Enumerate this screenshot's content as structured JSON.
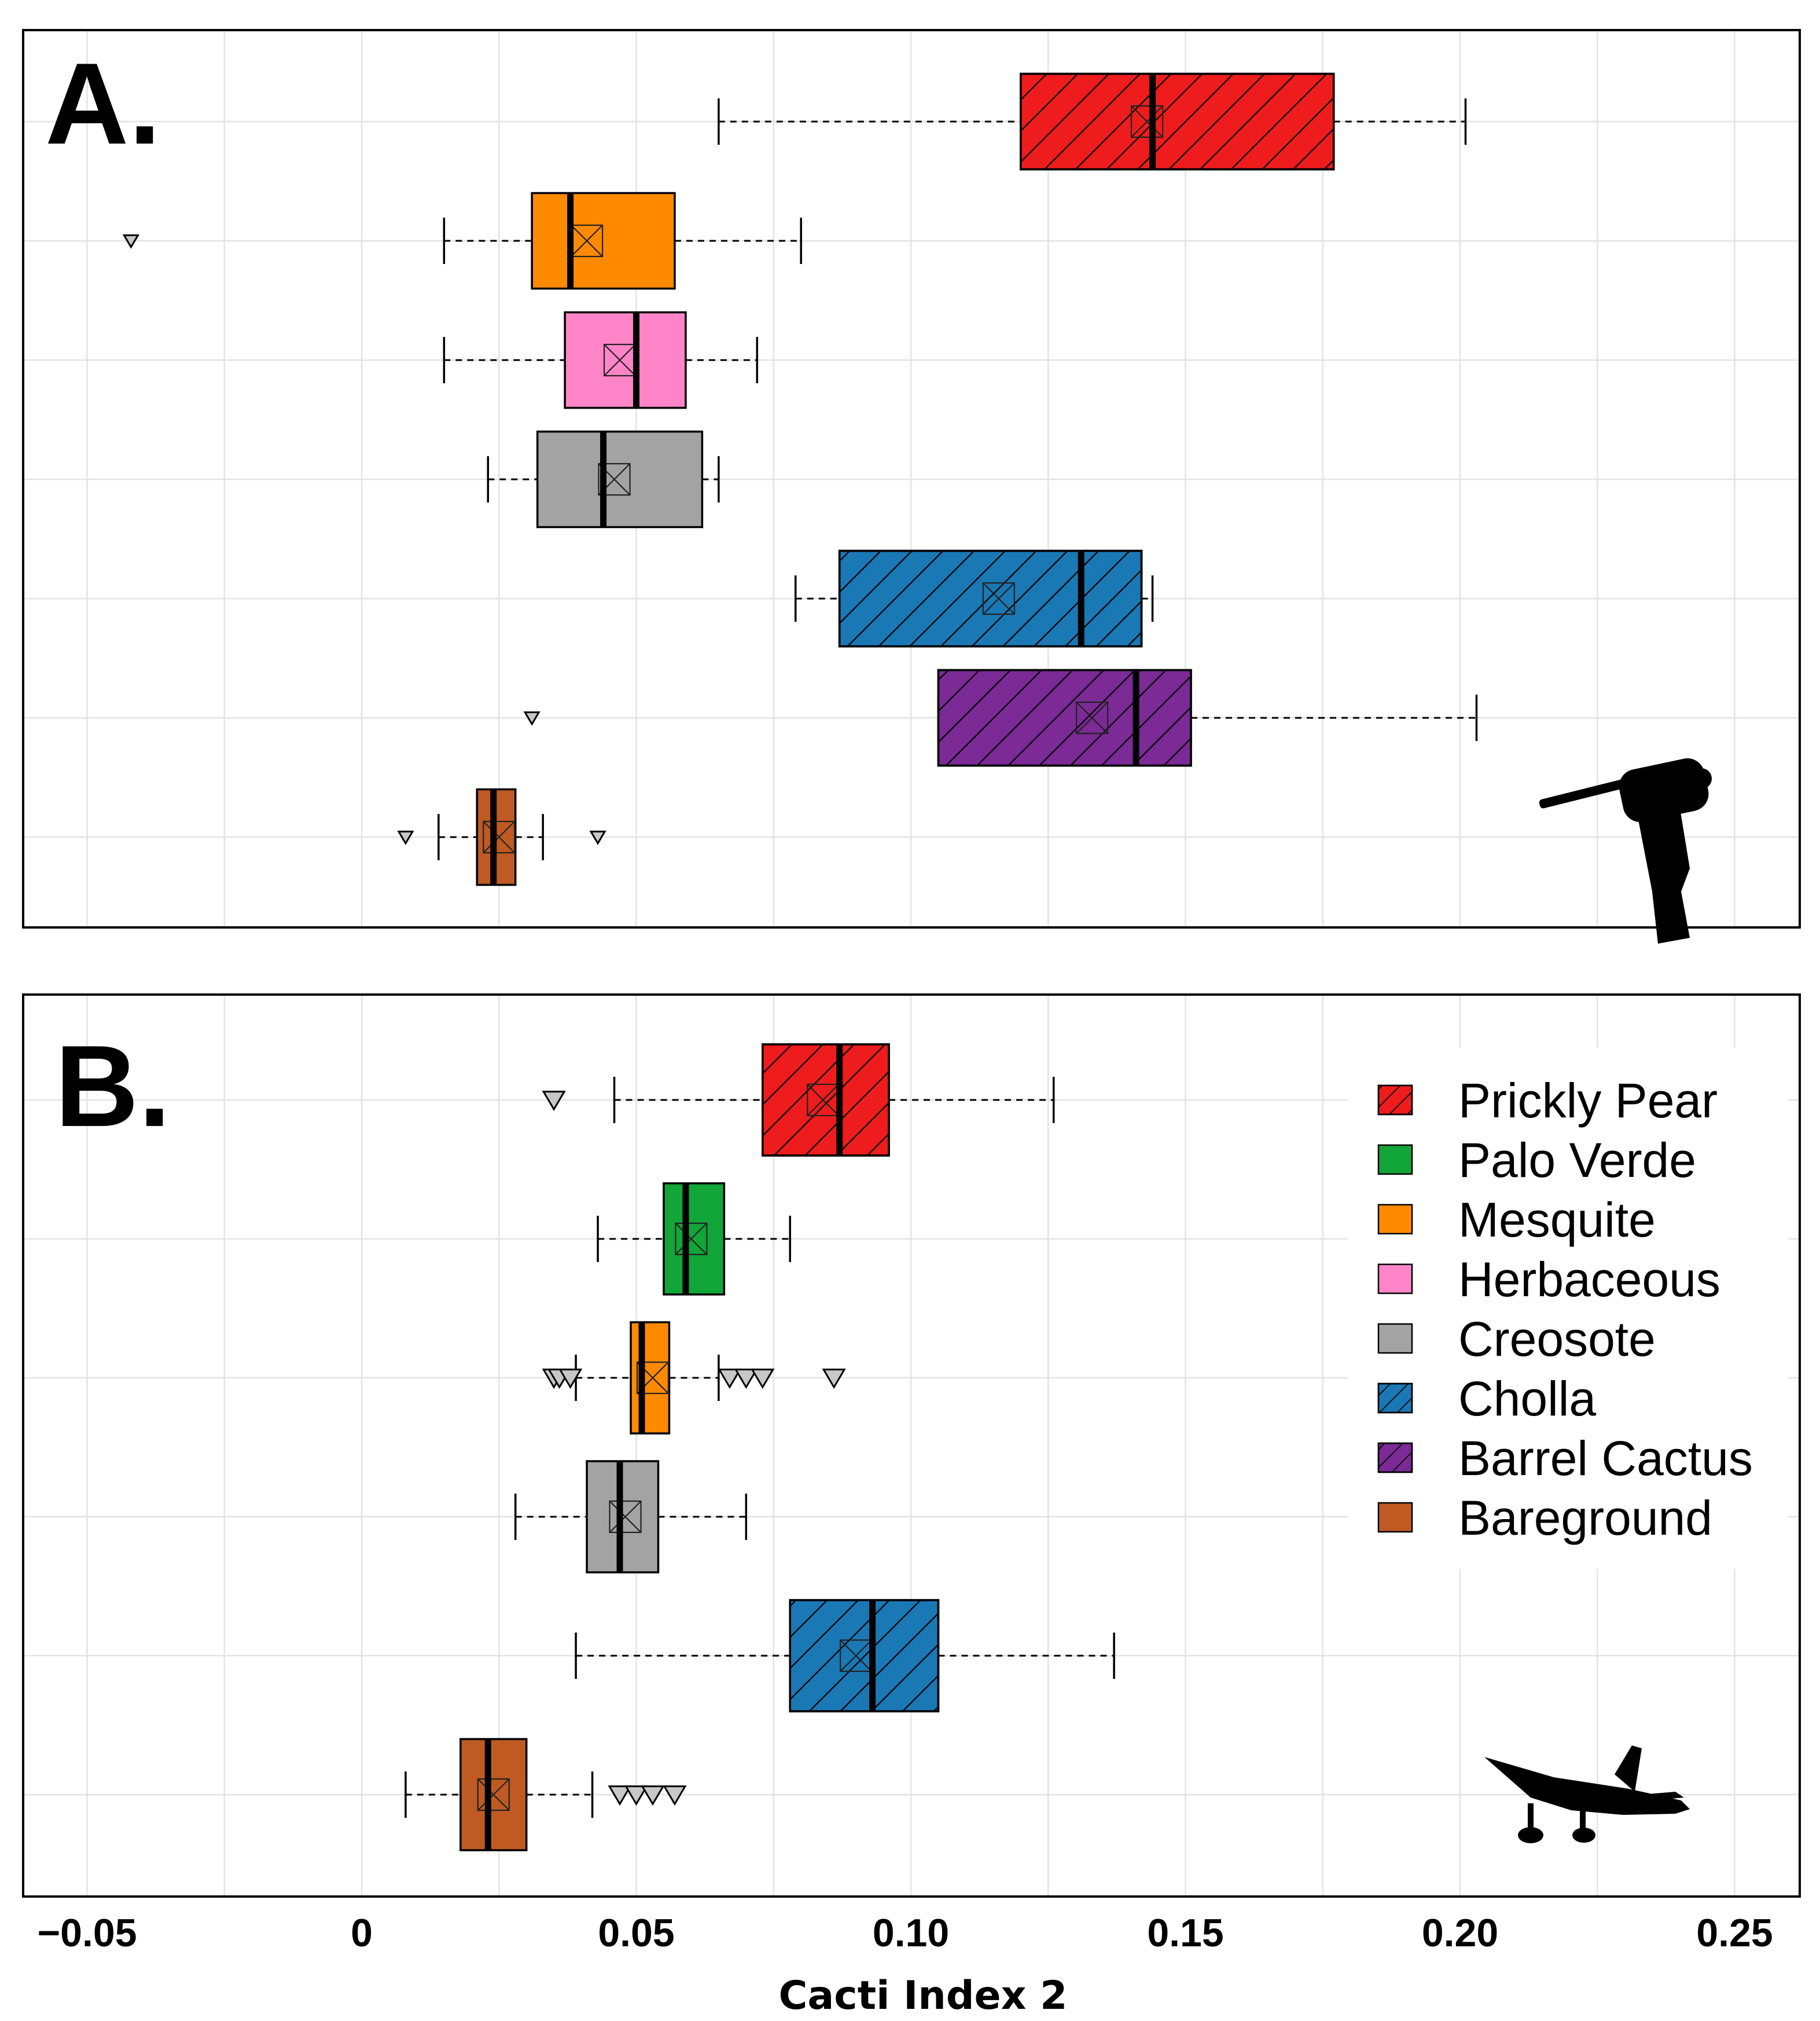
{
  "chart_data": {
    "type": "boxplot",
    "orientation": "horizontal",
    "xlabel": "Cacti Index 2",
    "xlim": [
      -0.06,
      0.26
    ],
    "xticks": [
      -0.05,
      0,
      0.05,
      0.1,
      0.15,
      0.2,
      0.25
    ],
    "xtick_labels": [
      "−0.05",
      "0",
      "0.05",
      "0.10",
      "0.15",
      "0.20",
      "0.25"
    ],
    "grid": true,
    "legend": {
      "position": "right",
      "entries": [
        {
          "label": "Prickly Pear",
          "color": "#EE1C1C",
          "hatched": true
        },
        {
          "label": "Palo Verde",
          "color": "#12A538",
          "hatched": false
        },
        {
          "label": "Mesquite",
          "color": "#FF8A00",
          "hatched": false
        },
        {
          "label": "Herbaceous",
          "color": "#FF85C8",
          "hatched": false
        },
        {
          "label": "Creosote",
          "color": "#A3A3A3",
          "hatched": false
        },
        {
          "label": "Cholla",
          "color": "#1A78B5",
          "hatched": true
        },
        {
          "label": "Barrel Cactus",
          "color": "#7B2A96",
          "hatched": true
        },
        {
          "label": "Bareground",
          "color": "#BF5A23",
          "hatched": false
        }
      ]
    },
    "panels": [
      {
        "label": "A.",
        "icon": "handheld-spectrometer-icon",
        "series": [
          {
            "name": "Prickly Pear",
            "whisker_low": 0.065,
            "q1": 0.12,
            "median": 0.144,
            "mean": 0.143,
            "q3": 0.177,
            "whisker_high": 0.201,
            "outliers": []
          },
          {
            "name": "Mesquite",
            "whisker_low": 0.015,
            "q1": 0.031,
            "median": 0.038,
            "mean": 0.041,
            "q3": 0.057,
            "whisker_high": 0.08,
            "outliers": [
              -0.042
            ]
          },
          {
            "name": "Herbaceous",
            "whisker_low": 0.015,
            "q1": 0.037,
            "median": 0.05,
            "mean": 0.047,
            "q3": 0.059,
            "whisker_high": 0.072,
            "outliers": []
          },
          {
            "name": "Creosote",
            "whisker_low": 0.023,
            "q1": 0.032,
            "median": 0.044,
            "mean": 0.046,
            "q3": 0.062,
            "whisker_high": 0.065,
            "outliers": []
          },
          {
            "name": "Cholla",
            "whisker_low": 0.079,
            "q1": 0.087,
            "median": 0.131,
            "mean": 0.116,
            "q3": 0.142,
            "whisker_high": 0.144,
            "outliers": []
          },
          {
            "name": "Barrel Cactus",
            "whisker_low": 0.105,
            "q1": 0.105,
            "median": 0.141,
            "mean": 0.133,
            "q3": 0.151,
            "whisker_high": 0.203,
            "outliers": [
              0.031
            ]
          },
          {
            "name": "Bareground",
            "whisker_low": 0.014,
            "q1": 0.021,
            "median": 0.024,
            "mean": 0.025,
            "q3": 0.028,
            "whisker_high": 0.033,
            "outliers": [
              0.008,
              0.043
            ]
          }
        ]
      },
      {
        "label": "B.",
        "icon": "airplane-icon",
        "series": [
          {
            "name": "Prickly Pear",
            "whisker_low": 0.046,
            "q1": 0.073,
            "median": 0.087,
            "mean": 0.084,
            "q3": 0.096,
            "whisker_high": 0.126,
            "outliers": [
              0.035
            ]
          },
          {
            "name": "Palo Verde",
            "whisker_low": 0.043,
            "q1": 0.055,
            "median": 0.059,
            "mean": 0.06,
            "q3": 0.066,
            "whisker_high": 0.078,
            "outliers": []
          },
          {
            "name": "Mesquite",
            "whisker_low": 0.039,
            "q1": 0.049,
            "median": 0.051,
            "mean": 0.053,
            "q3": 0.056,
            "whisker_high": 0.065,
            "outliers": [
              0.035,
              0.036,
              0.038,
              0.067,
              0.07,
              0.073,
              0.086
            ]
          },
          {
            "name": "Creosote",
            "whisker_low": 0.028,
            "q1": 0.041,
            "median": 0.047,
            "mean": 0.048,
            "q3": 0.054,
            "whisker_high": 0.07,
            "outliers": []
          },
          {
            "name": "Cholla",
            "whisker_low": 0.039,
            "q1": 0.078,
            "median": 0.093,
            "mean": 0.09,
            "q3": 0.105,
            "whisker_high": 0.137,
            "outliers": []
          },
          {
            "name": "Bareground",
            "whisker_low": 0.008,
            "q1": 0.018,
            "median": 0.023,
            "mean": 0.024,
            "q3": 0.03,
            "whisker_high": 0.042,
            "outliers": [
              0.047,
              0.05,
              0.053,
              0.057
            ]
          }
        ]
      }
    ]
  }
}
